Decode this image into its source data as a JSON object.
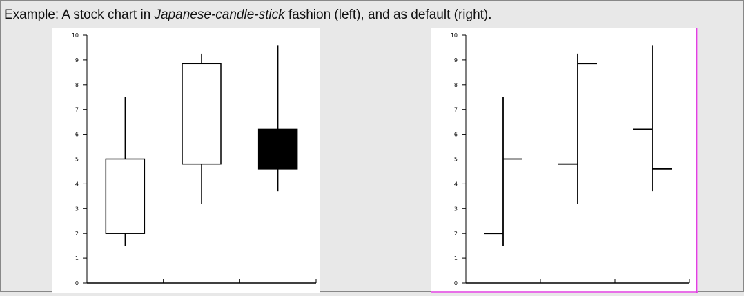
{
  "caption": {
    "prefix": "Example: A stock chart in ",
    "emphasis": "Japanese-candle-stick",
    "suffix": " fashion (left), and as default (right)."
  },
  "colors": {
    "background": "#e8e8e8",
    "plot_background": "#ffffff",
    "ink": "#000000",
    "right_border": "#e040e0"
  },
  "chart_data": [
    {
      "type": "candlestick",
      "style": "japanese-candle-stick",
      "ylim": [
        0,
        10
      ],
      "y_ticks": [
        "0",
        "1",
        "2",
        "3",
        "4",
        "5",
        "6",
        "7",
        "8",
        "9",
        "10"
      ],
      "x_ticks": [
        "",
        "",
        ""
      ],
      "grid": false,
      "series": [
        {
          "open": 2.0,
          "close": 5.0,
          "low": 1.5,
          "high": 7.5
        },
        {
          "open": 4.8,
          "close": 8.85,
          "low": 3.2,
          "high": 9.25
        },
        {
          "open": 6.2,
          "close": 4.6,
          "low": 3.7,
          "high": 9.6
        }
      ]
    },
    {
      "type": "ohlc",
      "style": "default",
      "ylim": [
        0,
        10
      ],
      "y_ticks": [
        "0",
        "1",
        "2",
        "3",
        "4",
        "5",
        "6",
        "7",
        "8",
        "9",
        "10"
      ],
      "x_ticks": [
        "",
        "",
        ""
      ],
      "grid": false,
      "series": [
        {
          "open": 2.0,
          "close": 5.0,
          "low": 1.5,
          "high": 7.5
        },
        {
          "open": 4.8,
          "close": 8.85,
          "low": 3.2,
          "high": 9.25
        },
        {
          "open": 6.2,
          "close": 4.6,
          "low": 3.7,
          "high": 9.6
        }
      ]
    }
  ]
}
